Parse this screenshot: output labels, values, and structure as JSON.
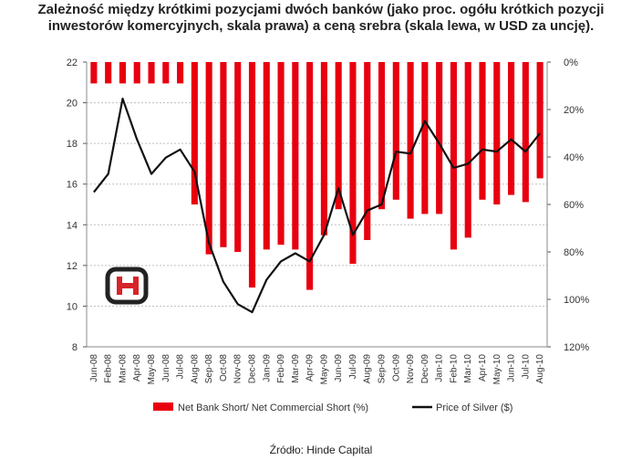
{
  "title_line1": "Zależność między krótkimi pozycjami dwóch banków (jako proc. ogółu krótkich pozycji",
  "title_line2": "inwestorów komercyjnych, skala prawa) a ceną srebra (skala lewa, w USD za uncję).",
  "source": "Źródło: Hinde Capital",
  "colors": {
    "bar": "#e8000f",
    "line": "#111111",
    "grid": "#bfbfbf",
    "logo": "#d8232a"
  },
  "chart_data": {
    "type": "bar",
    "categories": [
      "Jun-08",
      "Feb-08",
      "Mar-08",
      "Apr-08",
      "May-08",
      "Jun-08",
      "Jul-08",
      "Aug-08",
      "Sep-08",
      "Oct-08",
      "Nov-08",
      "Dec-08",
      "Jan-09",
      "Feb-09",
      "Mar-09",
      "Apr-09",
      "May-09",
      "Jun-09",
      "Jul-09",
      "Aug-09",
      "Sep-09",
      "Oct-09",
      "Nov-09",
      "Dec-09",
      "Jan-10",
      "Feb-10",
      "Mar-10",
      "Apr-10",
      "May-10",
      "Jun-10",
      "Jul-10",
      "Aug-10"
    ],
    "series": [
      {
        "name": "Net Bank Short/ Net Commercial Short (%)",
        "type": "bar",
        "axis": "right",
        "values": [
          9,
          9,
          9,
          9,
          9,
          9,
          9,
          60,
          81,
          78,
          80,
          95,
          79,
          77,
          79,
          96,
          73,
          62,
          85,
          75,
          62,
          58,
          66,
          64,
          64,
          79,
          74,
          58,
          60,
          56,
          59,
          49
        ]
      },
      {
        "name": "Price of Silver ($)",
        "type": "line",
        "axis": "left",
        "values": [
          15.6,
          16.5,
          20.2,
          18.2,
          16.5,
          17.3,
          17.7,
          16.6,
          13.1,
          11.2,
          10.1,
          9.7,
          11.3,
          12.2,
          12.6,
          12.2,
          13.5,
          15.8,
          13.5,
          14.7,
          15.0,
          17.6,
          17.5,
          19.1,
          18.0,
          16.8,
          17.0,
          17.7,
          17.6,
          18.2,
          17.6,
          18.5
        ]
      }
    ],
    "yleft": {
      "ticks": [
        8,
        10,
        12,
        14,
        16,
        18,
        20,
        22
      ],
      "range": [
        8,
        22
      ]
    },
    "yright": {
      "ticks": [
        "0%",
        "20%",
        "40%",
        "60%",
        "80%",
        "100%",
        "120%"
      ],
      "range": [
        0,
        120
      ],
      "inverted": true
    },
    "grid": true,
    "legend_position": "bottom"
  }
}
